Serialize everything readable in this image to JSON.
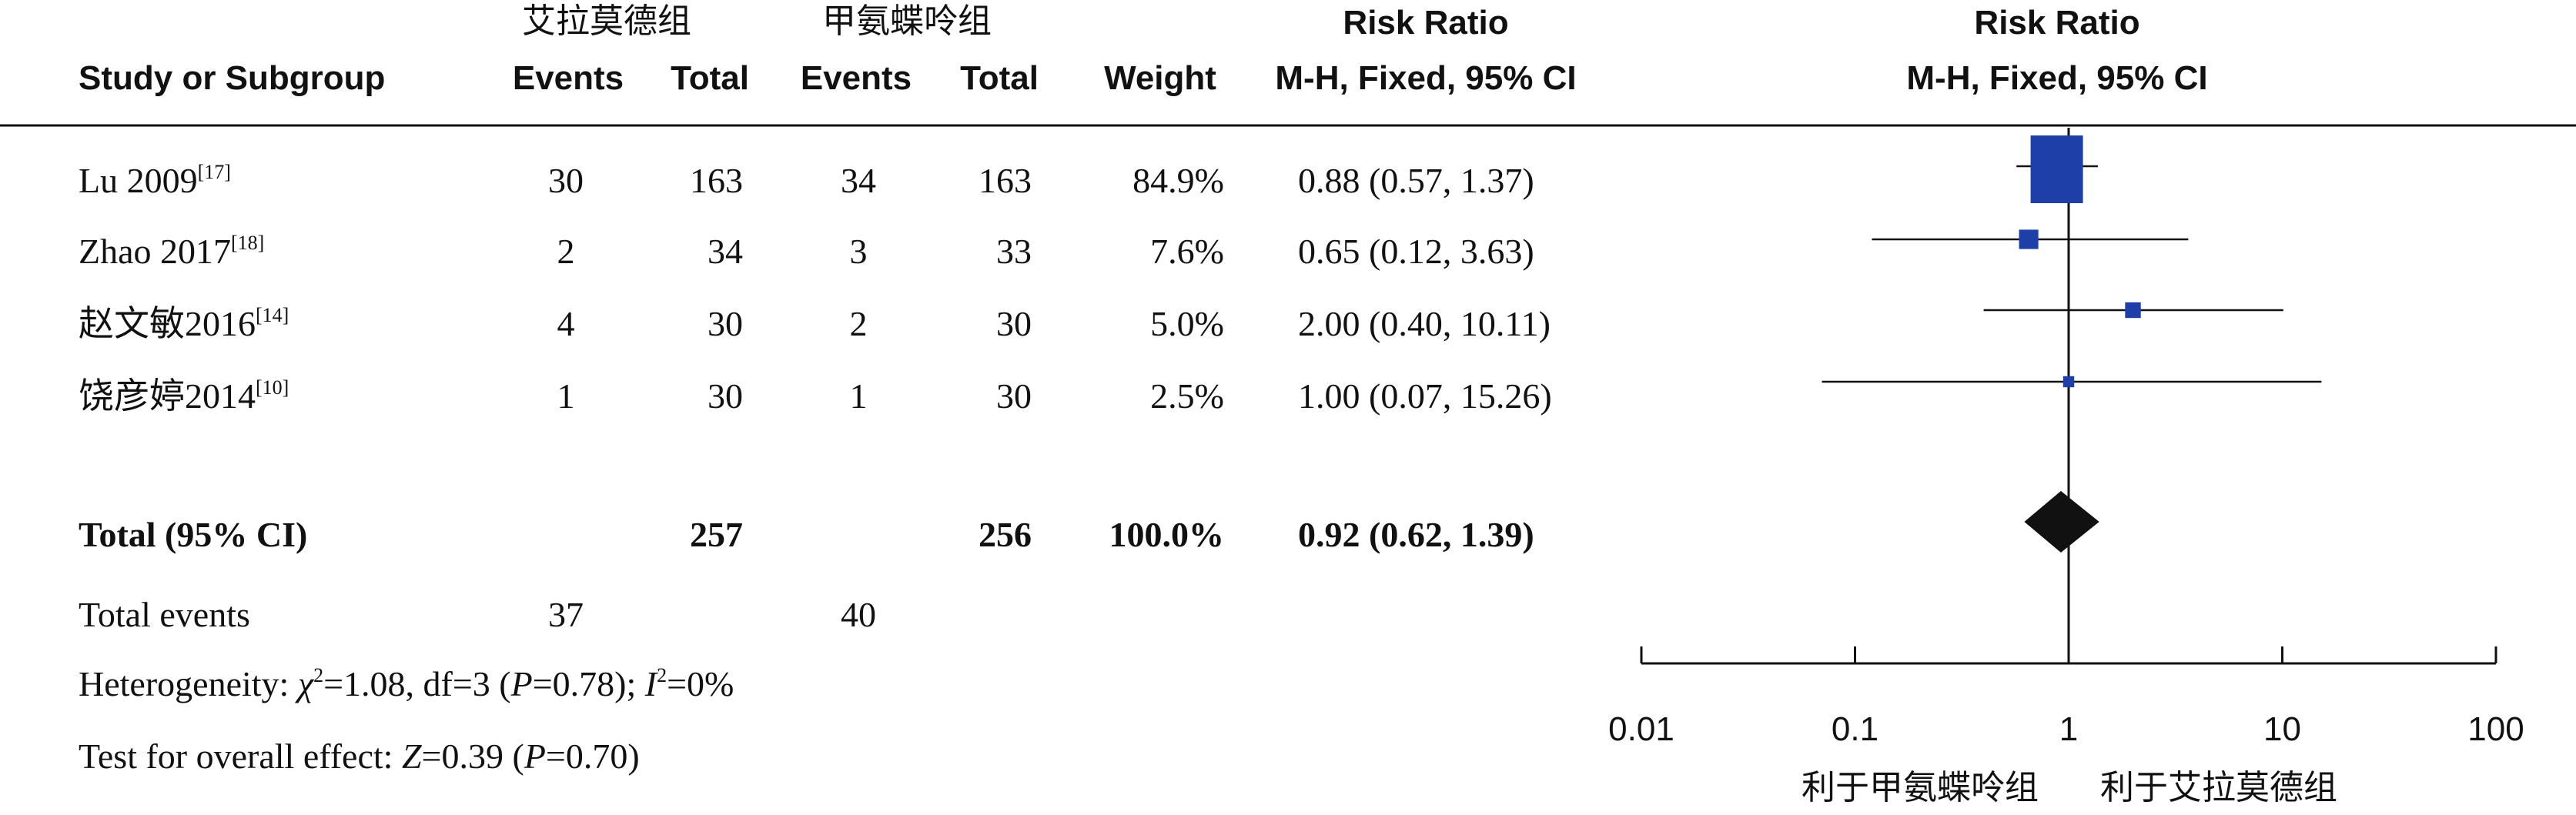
{
  "header": {
    "study_col": "Study or Subgroup",
    "group1": "艾拉莫德组",
    "group2": "甲氨蝶呤组",
    "events": "Events",
    "total": "Total",
    "weight": "Weight",
    "rr_title": "Risk Ratio",
    "rr_method": "M-H, Fixed, 95% CI",
    "plot_title": "Risk Ratio",
    "plot_method": "M-H, Fixed, 95% CI"
  },
  "studies": [
    {
      "name": "Lu 2009",
      "ref": "[17]",
      "e1": "30",
      "t1": "163",
      "e2": "34",
      "t2": "163",
      "weight": "84.9%",
      "ci": "0.88 (0.57, 1.37)"
    },
    {
      "name": "Zhao 2017",
      "ref": "[18]",
      "e1": "2",
      "t1": "34",
      "e2": "3",
      "t2": "33",
      "weight": "7.6%",
      "ci": "0.65 (0.12, 3.63)"
    },
    {
      "name": "赵文敏2016",
      "ref": "[14]",
      "e1": "4",
      "t1": "30",
      "e2": "2",
      "t2": "30",
      "weight": "5.0%",
      "ci": "2.00 (0.40, 10.11)"
    },
    {
      "name": "饶彦婷2014",
      "ref": "[10]",
      "e1": "1",
      "t1": "30",
      "e2": "1",
      "t2": "30",
      "weight": "2.5%",
      "ci": "1.00 (0.07, 15.26)"
    }
  ],
  "total_row": {
    "label": "Total (95% CI)",
    "t1": "257",
    "t2": "256",
    "weight": "100.0%",
    "ci": "0.92 (0.62, 1.39)"
  },
  "total_events": {
    "label": "Total events",
    "e1": "37",
    "e2": "40"
  },
  "heterogeneity": {
    "prefix": "Heterogeneity: ",
    "chi": "χ",
    "chi_sup": "2",
    "chi_val": "=1.08, df=3 (",
    "p1": "P",
    "p1_val": "=0.78); ",
    "i": "I",
    "i_sup": "2",
    "i_val": "=0%"
  },
  "overall": {
    "prefix": "Test for overall effect: ",
    "z": "Z",
    "z_val": "=0.39 (",
    "p": "P",
    "p_val": "=0.70)"
  },
  "axis": {
    "left_label": "利于甲氨蝶呤组",
    "right_label": "利于艾拉莫德组"
  },
  "chart_data": {
    "type": "forest",
    "scale": "log",
    "xlim": [
      0.01,
      100
    ],
    "ticks": [
      0.01,
      0.1,
      1,
      10,
      100
    ],
    "tick_labels": [
      "0.01",
      "0.1",
      "1",
      "10",
      "100"
    ],
    "reference_line": 1,
    "studies": [
      {
        "name": "Lu 2009",
        "rr": 0.88,
        "lo": 0.57,
        "hi": 1.37,
        "weight": 84.9
      },
      {
        "name": "Zhao 2017",
        "rr": 0.65,
        "lo": 0.12,
        "hi": 3.63,
        "weight": 7.6
      },
      {
        "name": "赵文敏2016",
        "rr": 2.0,
        "lo": 0.4,
        "hi": 10.11,
        "weight": 5.0
      },
      {
        "name": "饶彦婷2014",
        "rr": 1.0,
        "lo": 0.07,
        "hi": 15.26,
        "weight": 2.5
      }
    ],
    "pooled": {
      "rr": 0.92,
      "lo": 0.62,
      "hi": 1.39
    },
    "colors": {
      "study_marker": "#1f3fa8",
      "pooled_marker": "#111111",
      "lines": "#111111"
    }
  }
}
